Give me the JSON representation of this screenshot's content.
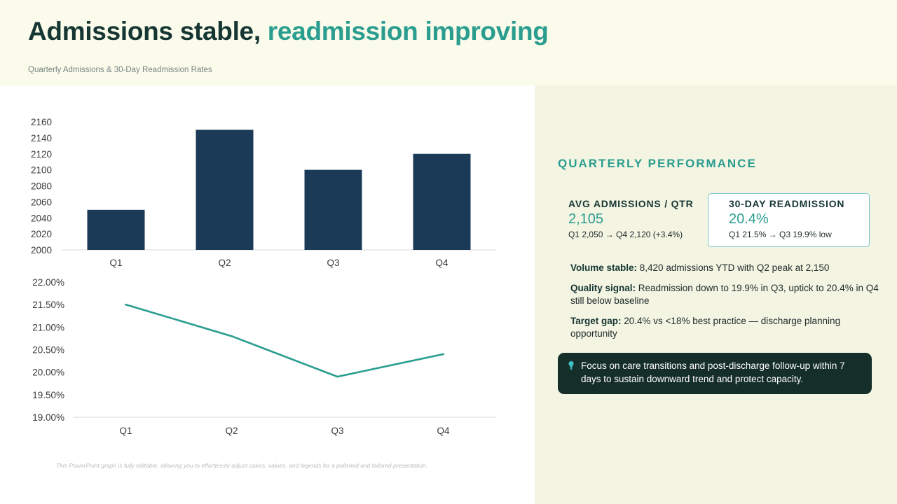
{
  "header": {
    "title_main": "Admissions stable, ",
    "title_accent": "readmission improving",
    "subtitle": "Quarterly Admissions & 30-Day Readmission Rates"
  },
  "footnote": "This PowerPoint graph is fully editable, allowing you to effortlessly adjust colors, values, and legends for a polished and tailored presentation.",
  "colors": {
    "bar": "#1b3a57",
    "line": "#2a9d8f",
    "accent": "#2a9d8f",
    "dark": "#163633"
  },
  "chart_data": [
    {
      "type": "bar",
      "categories": [
        "Q1",
        "Q2",
        "Q3",
        "Q4"
      ],
      "values": [
        2050,
        2150,
        2100,
        2120
      ],
      "ylim": [
        2000,
        2160
      ],
      "yticks": [
        "2000",
        "2020",
        "2040",
        "2060",
        "2080",
        "2100",
        "2120",
        "2140",
        "2160"
      ],
      "title": "",
      "xlabel": "",
      "ylabel": "",
      "grid": false
    },
    {
      "type": "line",
      "categories": [
        "Q1",
        "Q2",
        "Q3",
        "Q4"
      ],
      "values": [
        21.5,
        20.8,
        19.9,
        20.4
      ],
      "ylim": [
        19.0,
        22.0
      ],
      "yticks": [
        "19.00%",
        "19.50%",
        "20.00%",
        "20.50%",
        "21.00%",
        "21.50%",
        "22.00%"
      ],
      "title": "",
      "xlabel": "",
      "ylabel": "",
      "grid": false
    }
  ],
  "side": {
    "heading": "QUARTERLY PERFORMANCE",
    "kpi1": {
      "label": "AVG ADMISSIONS / QTR",
      "value": "2,105",
      "note": "Q1 2,050 → Q4 2,120 (+3.4%)"
    },
    "kpi2": {
      "label": "30-DAY READMISSION",
      "value": "20.4%",
      "note": "Q1 21.5% → Q3 19.9% low"
    },
    "insights": [
      {
        "label": "Volume stable:",
        "text": " 8,420 admissions YTD with Q2 peak at 2,150"
      },
      {
        "label": "Quality signal:",
        "text": " Readmission down to 19.9% in Q3, uptick to 20.4% in Q4 still below baseline"
      },
      {
        "label": "Target gap:",
        "text": " 20.4% vs <18% best practice — discharge planning opportunity"
      }
    ],
    "callout": {
      "icon": "lightbulb-icon",
      "text": "Focus on care transitions and post-discharge follow-up within 7 days to sustain downward trend and protect capacity."
    }
  }
}
